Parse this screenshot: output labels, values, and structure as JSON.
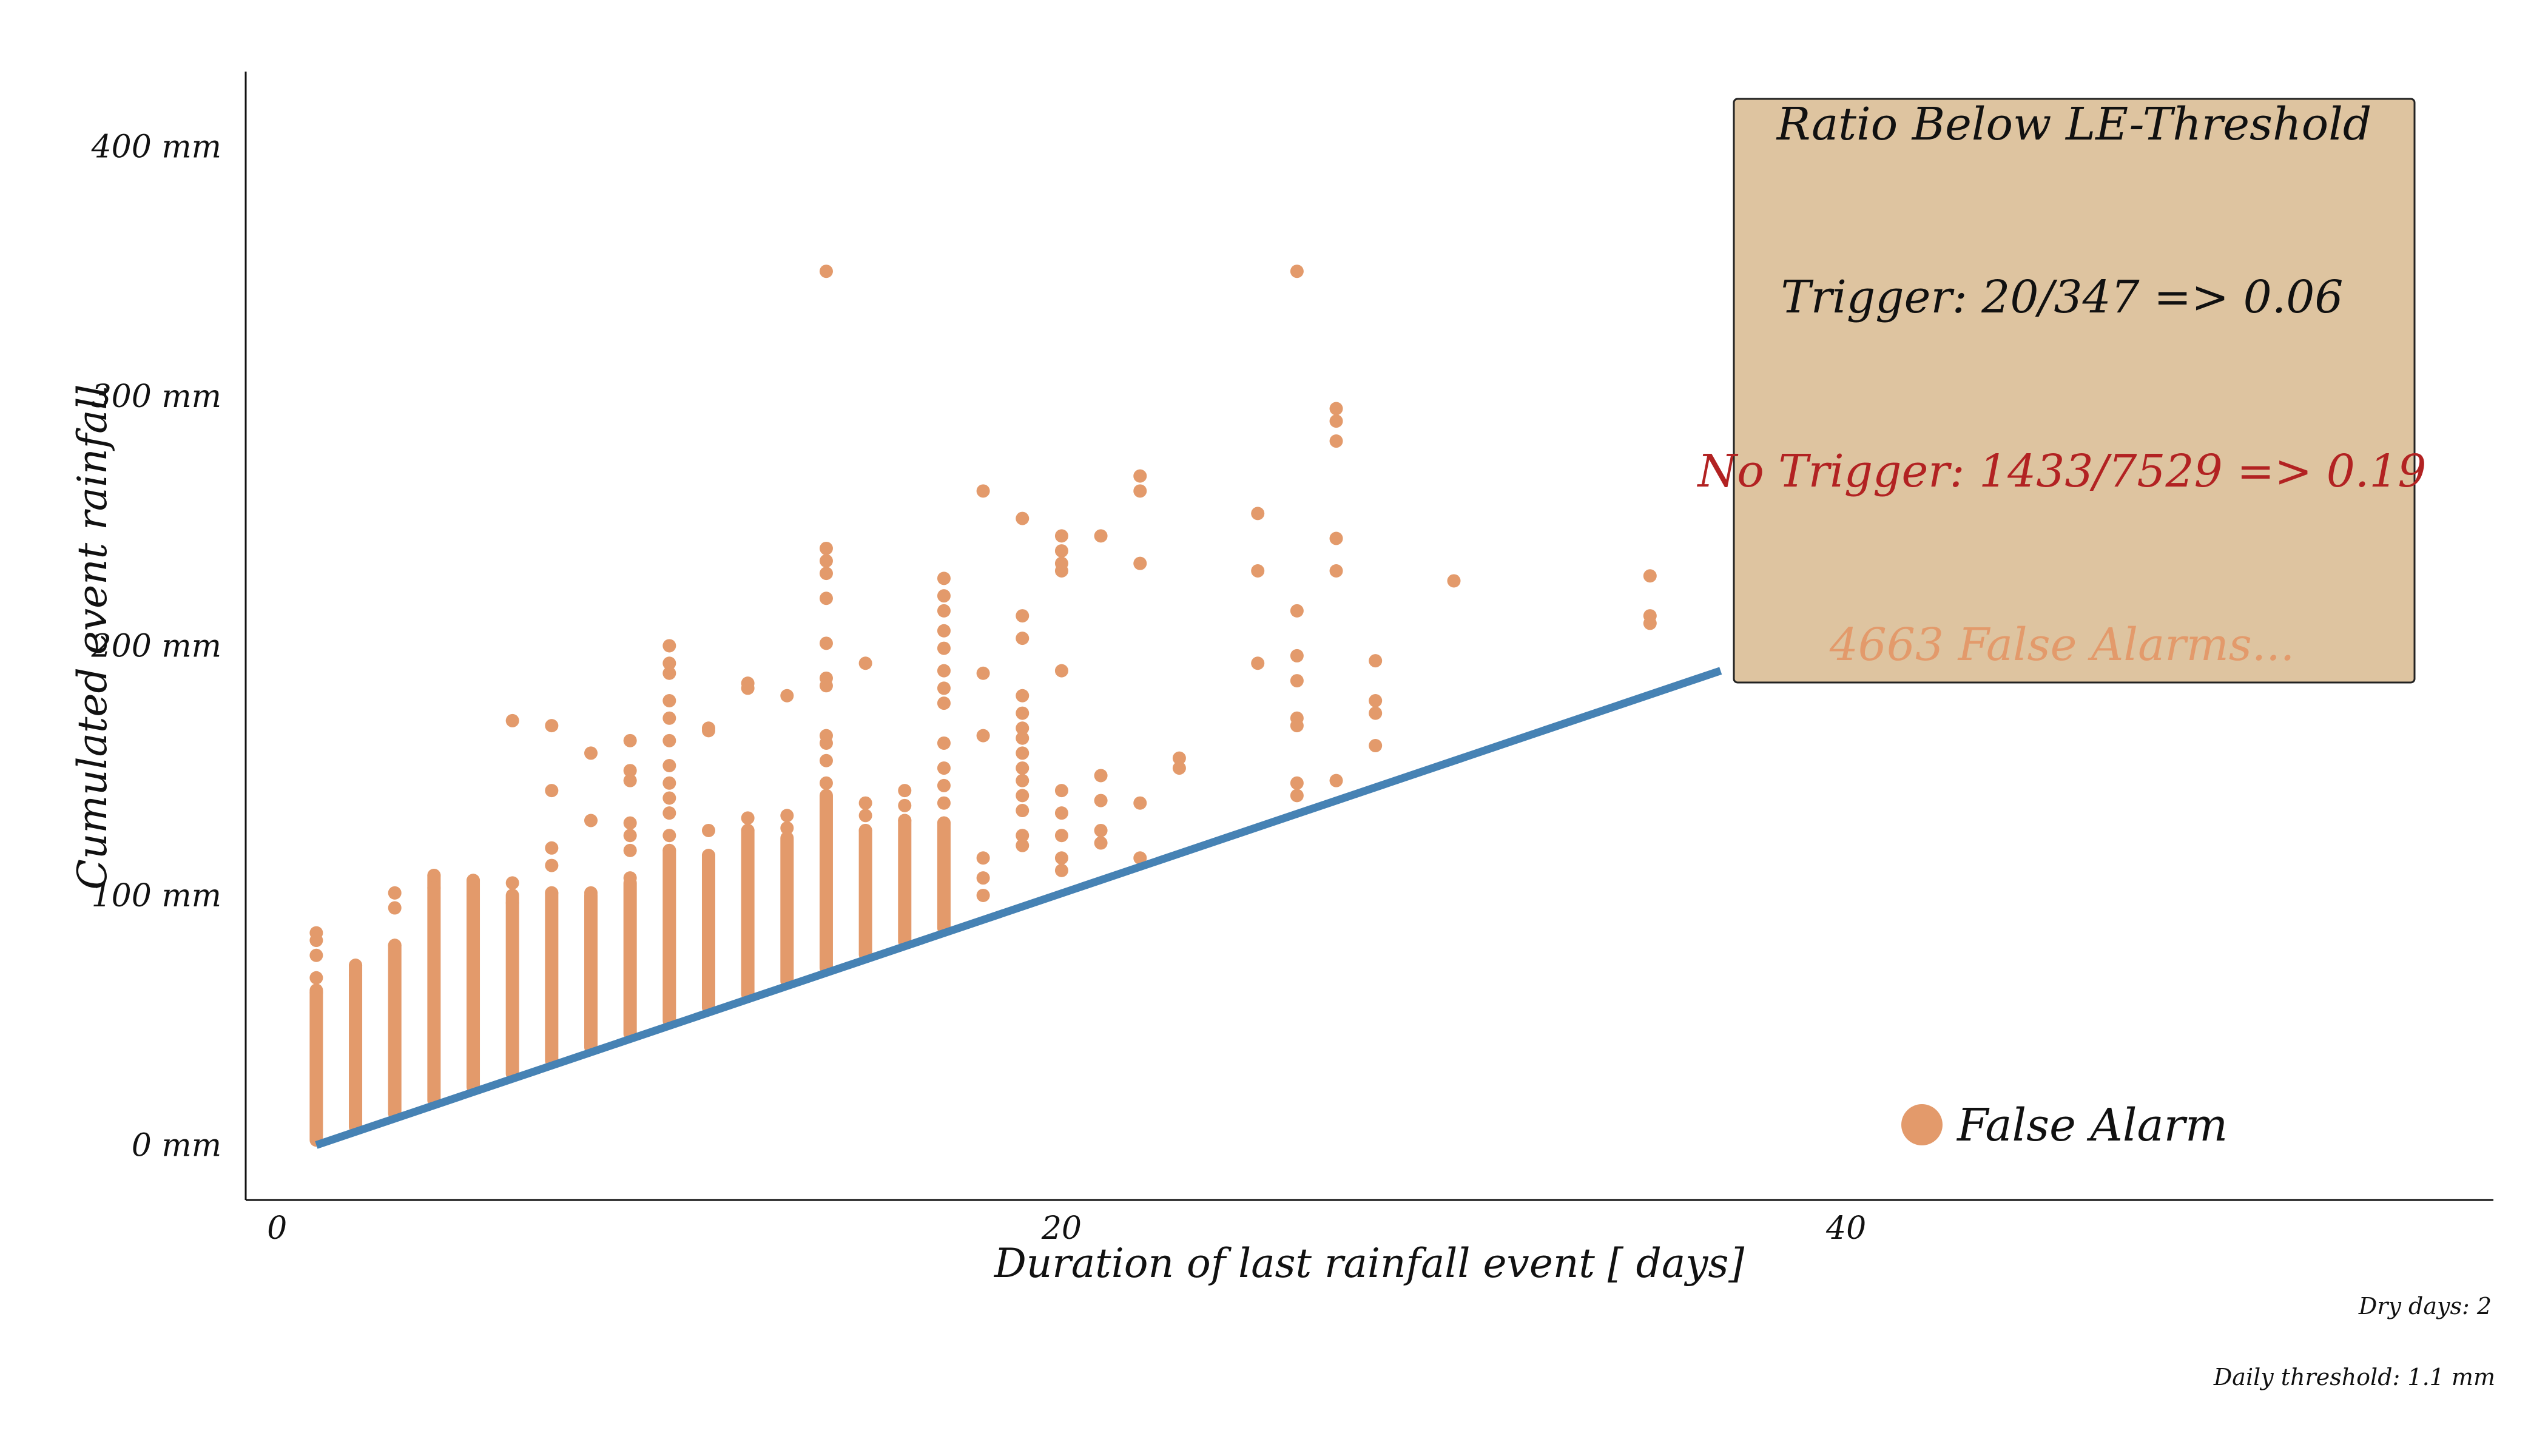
{
  "chart_data": {
    "type": "scatter",
    "xlabel": "Duration of last rainfall event [ days]",
    "ylabel": "Cumulated event rainfall",
    "xlim": [
      -0.8,
      56.5
    ],
    "ylim": [
      -22,
      430
    ],
    "x_ticks": [
      {
        "value": 0,
        "label": "0"
      },
      {
        "value": 20,
        "label": "20"
      },
      {
        "value": 40,
        "label": "40"
      }
    ],
    "y_ticks": [
      {
        "value": 0,
        "label": "0 mm"
      },
      {
        "value": 100,
        "label": "100 mm"
      },
      {
        "value": 200,
        "label": "200 mm"
      },
      {
        "value": 300,
        "label": "300 mm"
      },
      {
        "value": 400,
        "label": "400 mm"
      }
    ],
    "grid": false,
    "legend": {
      "position": "bottom-right",
      "label": "False Alarm"
    },
    "colors": {
      "points": "#E39A6B",
      "threshold_line": "#4682B4",
      "box_fill": "#DEC4A0",
      "no_trigger_text": "#B22222",
      "false_alarms_text": "#E39A6B"
    },
    "threshold_line": {
      "x": [
        1,
        36.8
      ],
      "y": [
        0,
        190
      ]
    },
    "annotation_box": {
      "position": "top-right",
      "title": "Ratio Below LE-Threshold",
      "trigger": "Trigger: 20/347 => 0.06",
      "no_trigger": "No Trigger: 1433/7529 => 0.19",
      "false_alarms": "4663 False Alarms..."
    },
    "footnotes": {
      "dry_days": "Dry days: 2",
      "daily_threshold": "Daily threshold: 1.1 mm"
    },
    "series": [
      {
        "name": "False Alarm",
        "points": [
          {
            "x": 1,
            "y": 85
          },
          {
            "x": 1,
            "y": 82
          },
          {
            "x": 1,
            "y": 76
          },
          {
            "x": 1,
            "y": 67
          },
          {
            "x": 1,
            "y": 61
          },
          {
            "x": 2,
            "y": 72
          },
          {
            "x": 2,
            "y": 68
          },
          {
            "x": 3,
            "y": 101
          },
          {
            "x": 3,
            "y": 95
          },
          {
            "x": 3,
            "y": 80
          },
          {
            "x": 4,
            "y": 108
          },
          {
            "x": 4,
            "y": 103
          },
          {
            "x": 5,
            "y": 106
          },
          {
            "x": 5,
            "y": 100
          },
          {
            "x": 6,
            "y": 170
          },
          {
            "x": 6,
            "y": 105
          },
          {
            "x": 6,
            "y": 97
          },
          {
            "x": 7,
            "y": 168
          },
          {
            "x": 7,
            "y": 142
          },
          {
            "x": 7,
            "y": 119
          },
          {
            "x": 7,
            "y": 112
          },
          {
            "x": 7,
            "y": 101
          },
          {
            "x": 8,
            "y": 157
          },
          {
            "x": 8,
            "y": 130
          },
          {
            "x": 8,
            "y": 101
          },
          {
            "x": 9,
            "y": 162
          },
          {
            "x": 9,
            "y": 150
          },
          {
            "x": 9,
            "y": 146
          },
          {
            "x": 9,
            "y": 129
          },
          {
            "x": 9,
            "y": 124
          },
          {
            "x": 9,
            "y": 118
          },
          {
            "x": 9,
            "y": 107
          },
          {
            "x": 10,
            "y": 200
          },
          {
            "x": 10,
            "y": 193
          },
          {
            "x": 10,
            "y": 189
          },
          {
            "x": 10,
            "y": 178
          },
          {
            "x": 10,
            "y": 171
          },
          {
            "x": 10,
            "y": 162
          },
          {
            "x": 10,
            "y": 152
          },
          {
            "x": 10,
            "y": 145
          },
          {
            "x": 10,
            "y": 139
          },
          {
            "x": 10,
            "y": 133
          },
          {
            "x": 10,
            "y": 124
          },
          {
            "x": 10,
            "y": 118
          },
          {
            "x": 11,
            "y": 167
          },
          {
            "x": 11,
            "y": 166
          },
          {
            "x": 11,
            "y": 126
          },
          {
            "x": 11,
            "y": 116
          },
          {
            "x": 12,
            "y": 185
          },
          {
            "x": 12,
            "y": 183
          },
          {
            "x": 12,
            "y": 131
          },
          {
            "x": 12,
            "y": 126
          },
          {
            "x": 13,
            "y": 180
          },
          {
            "x": 13,
            "y": 132
          },
          {
            "x": 13,
            "y": 127
          },
          {
            "x": 14,
            "y": 350
          },
          {
            "x": 14,
            "y": 239
          },
          {
            "x": 14,
            "y": 234
          },
          {
            "x": 14,
            "y": 229
          },
          {
            "x": 14,
            "y": 219
          },
          {
            "x": 14,
            "y": 201
          },
          {
            "x": 14,
            "y": 187
          },
          {
            "x": 14,
            "y": 184
          },
          {
            "x": 14,
            "y": 164
          },
          {
            "x": 14,
            "y": 161
          },
          {
            "x": 14,
            "y": 154
          },
          {
            "x": 14,
            "y": 145
          },
          {
            "x": 15,
            "y": 193
          },
          {
            "x": 15,
            "y": 137
          },
          {
            "x": 15,
            "y": 132
          },
          {
            "x": 15,
            "y": 126
          },
          {
            "x": 16,
            "y": 142
          },
          {
            "x": 16,
            "y": 136
          },
          {
            "x": 16,
            "y": 130
          },
          {
            "x": 17,
            "y": 227
          },
          {
            "x": 17,
            "y": 220
          },
          {
            "x": 17,
            "y": 214
          },
          {
            "x": 17,
            "y": 206
          },
          {
            "x": 17,
            "y": 199
          },
          {
            "x": 17,
            "y": 190
          },
          {
            "x": 17,
            "y": 183
          },
          {
            "x": 17,
            "y": 177
          },
          {
            "x": 17,
            "y": 161
          },
          {
            "x": 17,
            "y": 151
          },
          {
            "x": 17,
            "y": 144
          },
          {
            "x": 17,
            "y": 137
          },
          {
            "x": 17,
            "y": 129
          },
          {
            "x": 18,
            "y": 262
          },
          {
            "x": 18,
            "y": 189
          },
          {
            "x": 18,
            "y": 164
          },
          {
            "x": 18,
            "y": 115
          },
          {
            "x": 18,
            "y": 107
          },
          {
            "x": 18,
            "y": 100
          },
          {
            "x": 19,
            "y": 251
          },
          {
            "x": 19,
            "y": 212
          },
          {
            "x": 19,
            "y": 203
          },
          {
            "x": 19,
            "y": 180
          },
          {
            "x": 19,
            "y": 173
          },
          {
            "x": 19,
            "y": 167
          },
          {
            "x": 19,
            "y": 163
          },
          {
            "x": 19,
            "y": 157
          },
          {
            "x": 19,
            "y": 151
          },
          {
            "x": 19,
            "y": 146
          },
          {
            "x": 19,
            "y": 140
          },
          {
            "x": 19,
            "y": 134
          },
          {
            "x": 19,
            "y": 124
          },
          {
            "x": 19,
            "y": 120
          },
          {
            "x": 20,
            "y": 244
          },
          {
            "x": 20,
            "y": 238
          },
          {
            "x": 20,
            "y": 233
          },
          {
            "x": 20,
            "y": 230
          },
          {
            "x": 20,
            "y": 190
          },
          {
            "x": 20,
            "y": 142
          },
          {
            "x": 20,
            "y": 133
          },
          {
            "x": 20,
            "y": 124
          },
          {
            "x": 20,
            "y": 115
          },
          {
            "x": 20,
            "y": 110
          },
          {
            "x": 21,
            "y": 244
          },
          {
            "x": 21,
            "y": 148
          },
          {
            "x": 21,
            "y": 138
          },
          {
            "x": 21,
            "y": 126
          },
          {
            "x": 21,
            "y": 121
          },
          {
            "x": 22,
            "y": 268
          },
          {
            "x": 22,
            "y": 262
          },
          {
            "x": 22,
            "y": 233
          },
          {
            "x": 22,
            "y": 137
          },
          {
            "x": 22,
            "y": 115
          },
          {
            "x": 23,
            "y": 155
          },
          {
            "x": 23,
            "y": 151
          },
          {
            "x": 25,
            "y": 253
          },
          {
            "x": 25,
            "y": 230
          },
          {
            "x": 25,
            "y": 193
          },
          {
            "x": 26,
            "y": 350
          },
          {
            "x": 26,
            "y": 214
          },
          {
            "x": 26,
            "y": 196
          },
          {
            "x": 26,
            "y": 186
          },
          {
            "x": 26,
            "y": 171
          },
          {
            "x": 26,
            "y": 168
          },
          {
            "x": 26,
            "y": 145
          },
          {
            "x": 26,
            "y": 140
          },
          {
            "x": 27,
            "y": 295
          },
          {
            "x": 27,
            "y": 290
          },
          {
            "x": 27,
            "y": 282
          },
          {
            "x": 27,
            "y": 243
          },
          {
            "x": 27,
            "y": 230
          },
          {
            "x": 27,
            "y": 146
          },
          {
            "x": 28,
            "y": 194
          },
          {
            "x": 28,
            "y": 178
          },
          {
            "x": 28,
            "y": 173
          },
          {
            "x": 28,
            "y": 160
          },
          {
            "x": 30,
            "y": 226
          },
          {
            "x": 35,
            "y": 228
          },
          {
            "x": 35,
            "y": 212
          },
          {
            "x": 35,
            "y": 209
          }
        ]
      }
    ]
  }
}
